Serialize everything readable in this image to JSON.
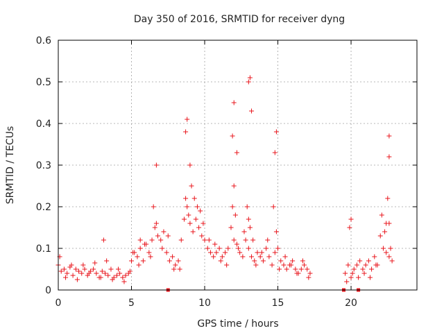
{
  "chart_data": {
    "type": "scatter",
    "title": "Day 350 of 2016, SRMTID for receiver dyng",
    "xlabel": "GPS time / hours",
    "ylabel": "SRMTID / TECUs",
    "xlim": [
      0,
      24.5
    ],
    "ylim": [
      0,
      0.6
    ],
    "xticks": [
      0,
      5,
      10,
      15,
      20
    ],
    "xtick_labels": [
      "0",
      "5",
      "10",
      "15",
      "20"
    ],
    "yticks": [
      0,
      0.1,
      0.2,
      0.3,
      0.4,
      0.5,
      0.6
    ],
    "ytick_labels": [
      "0",
      "0.1",
      "0.2",
      "0.3",
      "0.4",
      "0.5",
      "0.6"
    ],
    "grid": true,
    "legend": "none",
    "marker": "+",
    "series": [
      {
        "name": "SRMTID",
        "color": "#e8141b",
        "x": [
          0.0,
          0.2,
          0.4,
          0.6,
          0.8,
          1.0,
          1.2,
          1.4,
          1.6,
          1.8,
          2.0,
          2.2,
          2.4,
          2.6,
          2.8,
          3.0,
          3.2,
          3.4,
          3.6,
          3.8,
          4.0,
          4.2,
          4.4,
          4.6,
          4.8,
          5.0,
          5.2,
          5.4,
          5.6,
          5.8,
          6.0,
          6.2,
          6.4,
          6.6,
          6.8,
          7.0,
          7.2,
          7.4,
          7.6,
          7.8,
          8.0,
          8.2,
          8.4,
          8.6,
          8.8,
          9.0,
          9.2,
          9.4,
          9.6,
          9.8,
          10.0,
          10.2,
          10.4,
          10.6,
          10.8,
          11.0,
          11.2,
          11.4,
          11.6,
          11.8,
          12.0,
          12.2,
          12.4,
          12.6,
          12.8,
          13.0,
          13.2,
          13.4,
          13.6,
          13.8,
          14.0,
          14.2,
          14.4,
          14.6,
          14.8,
          15.0,
          15.2,
          15.4,
          15.6,
          15.8,
          16.0,
          16.2,
          16.4,
          16.6,
          16.8,
          17.0,
          17.2,
          19.6,
          19.8,
          20.0,
          20.2,
          20.4,
          20.6,
          20.8,
          21.0,
          21.2,
          21.4,
          21.6,
          21.8,
          22.0,
          22.2,
          22.4,
          22.6,
          22.8,
          0.1,
          0.5,
          0.9,
          1.3,
          1.7,
          2.1,
          2.5,
          2.9,
          3.3,
          3.7,
          4.1,
          4.5,
          4.9,
          5.1,
          5.5,
          5.9,
          6.3,
          6.7,
          7.1,
          7.5,
          7.9,
          8.3,
          8.7,
          8.9,
          9.1,
          9.3,
          9.5,
          9.7,
          9.9,
          10.3,
          10.7,
          11.1,
          11.5,
          11.9,
          12.0,
          12.1,
          12.3,
          12.7,
          12.9,
          13.0,
          13.1,
          13.3,
          13.5,
          13.9,
          14.3,
          14.7,
          14.9,
          15.1,
          15.5,
          15.9,
          16.3,
          16.7,
          17.1,
          19.7,
          19.9,
          20.1,
          20.5,
          20.9,
          21.3,
          21.7,
          22.1,
          22.3,
          22.5,
          22.6,
          22.7,
          3.1,
          5.6,
          6.5,
          6.7,
          8.7,
          8.8,
          9.0,
          11.9,
          12.0,
          12.2,
          13.0,
          13.1,
          13.2,
          14.8,
          14.9,
          20.0,
          22.4,
          22.6,
          22.6
        ],
        "y": [
          0.06,
          0.045,
          0.05,
          0.04,
          0.055,
          0.035,
          0.05,
          0.045,
          0.04,
          0.05,
          0.035,
          0.045,
          0.05,
          0.04,
          0.03,
          0.045,
          0.04,
          0.035,
          0.05,
          0.03,
          0.035,
          0.04,
          0.03,
          0.035,
          0.04,
          0.07,
          0.09,
          0.08,
          0.1,
          0.07,
          0.11,
          0.09,
          0.12,
          0.15,
          0.13,
          0.12,
          0.14,
          0.09,
          0.07,
          0.08,
          0.06,
          0.07,
          0.12,
          0.17,
          0.2,
          0.16,
          0.14,
          0.17,
          0.15,
          0.13,
          0.12,
          0.1,
          0.09,
          0.08,
          0.09,
          0.1,
          0.08,
          0.09,
          0.1,
          0.15,
          0.12,
          0.11,
          0.09,
          0.08,
          0.12,
          0.1,
          0.08,
          0.07,
          0.09,
          0.08,
          0.07,
          0.1,
          0.08,
          0.06,
          0.09,
          0.1,
          0.07,
          0.06,
          0.05,
          0.06,
          0.07,
          0.05,
          0.04,
          0.05,
          0.06,
          0.05,
          0.04,
          0.04,
          0.06,
          0.03,
          0.05,
          0.06,
          0.07,
          0.05,
          0.06,
          0.07,
          0.05,
          0.08,
          0.06,
          0.13,
          0.1,
          0.09,
          0.08,
          0.07,
          0.08,
          0.03,
          0.06,
          0.025,
          0.06,
          0.04,
          0.065,
          0.03,
          0.07,
          0.025,
          0.05,
          0.02,
          0.045,
          0.09,
          0.06,
          0.11,
          0.08,
          0.16,
          0.1,
          0.13,
          0.05,
          0.05,
          0.22,
          0.18,
          0.25,
          0.22,
          0.2,
          0.19,
          0.16,
          0.12,
          0.11,
          0.07,
          0.06,
          0.2,
          0.25,
          0.18,
          0.1,
          0.14,
          0.2,
          0.17,
          0.15,
          0.12,
          0.06,
          0.09,
          0.12,
          0.2,
          0.14,
          0.05,
          0.08,
          0.06,
          0.04,
          0.07,
          0.03,
          0.02,
          0.15,
          0.04,
          0.03,
          0.04,
          0.03,
          0.06,
          0.18,
          0.14,
          0.22,
          0.16,
          0.1,
          0.12,
          0.12,
          0.2,
          0.3,
          0.38,
          0.41,
          0.3,
          0.37,
          0.45,
          0.33,
          0.5,
          0.51,
          0.43,
          0.33,
          0.38,
          0.17,
          0.16,
          0.37,
          0.32
        ]
      }
    ],
    "baseline_markers_x": [
      7.5,
      19.5,
      20.5
    ]
  }
}
